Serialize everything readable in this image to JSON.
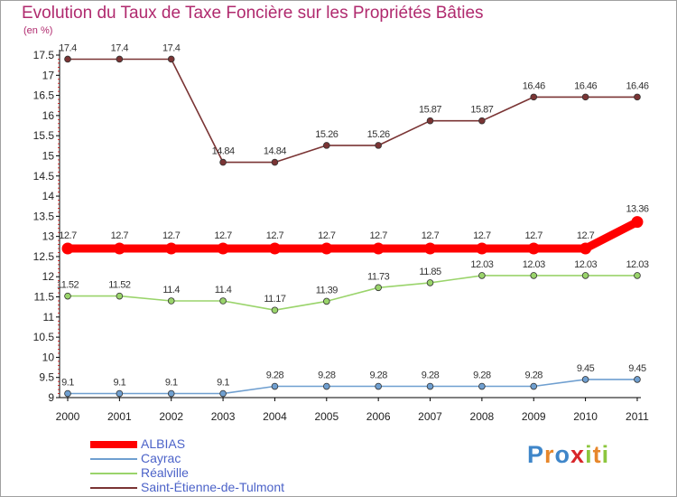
{
  "chart_data": {
    "type": "line",
    "title": "Evolution du Taux de Taxe Foncière sur les Propriétés Bâties",
    "ylabel": "(en %)",
    "xlabel": "",
    "x": [
      "2000",
      "2001",
      "2002",
      "2003",
      "2004",
      "2005",
      "2006",
      "2007",
      "2008",
      "2009",
      "2010",
      "2011"
    ],
    "ylim": [
      9,
      17.5
    ],
    "yticks": [
      "9",
      "9.5",
      "10",
      "10.5",
      "11",
      "11.5",
      "12",
      "12.5",
      "13",
      "13.5",
      "14",
      "14.5",
      "15",
      "15.5",
      "16",
      "16.5",
      "17",
      "17.5"
    ],
    "grid": false,
    "series": [
      {
        "name": "ALBIAS",
        "color": "#ff0000",
        "values": [
          12.7,
          12.7,
          12.7,
          12.7,
          12.7,
          12.7,
          12.7,
          12.7,
          12.7,
          12.7,
          12.7,
          13.36
        ],
        "labels": [
          "12.7",
          "12.7",
          "12.7",
          "12.7",
          "12.7",
          "12.7",
          "12.7",
          "12.7",
          "12.7",
          "12.7",
          "12.7",
          "13.36"
        ]
      },
      {
        "name": "Cayrac",
        "color": "#6f9fd0",
        "values": [
          9.1,
          9.1,
          9.1,
          9.1,
          9.28,
          9.28,
          9.28,
          9.28,
          9.28,
          9.28,
          9.45,
          9.45
        ],
        "labels": [
          "9.1",
          "9.1",
          "9.1",
          "9.1",
          "9.28",
          "9.28",
          "9.28",
          "9.28",
          "9.28",
          "9.28",
          "9.45",
          "9.45"
        ]
      },
      {
        "name": "Réalville",
        "color": "#9ad46b",
        "values": [
          11.52,
          11.52,
          11.4,
          11.4,
          11.17,
          11.39,
          11.73,
          11.85,
          12.03,
          12.03,
          12.03,
          12.03
        ],
        "labels": [
          "11.52",
          "11.52",
          "11.4",
          "11.4",
          "11.17",
          "11.39",
          "11.73",
          "11.85",
          "12.03",
          "12.03",
          "12.03",
          "12.03"
        ]
      },
      {
        "name": "Saint-Étienne-de-Tulmont",
        "color": "#7a3434",
        "values": [
          17.4,
          17.4,
          17.4,
          14.84,
          14.84,
          15.26,
          15.26,
          15.87,
          15.87,
          16.46,
          16.46,
          16.46
        ],
        "labels": [
          "17.4",
          "17.4",
          "17.4",
          "14.84",
          "14.84",
          "15.26",
          "15.26",
          "15.87",
          "15.87",
          "16.46",
          "16.46",
          "16.46"
        ]
      }
    ]
  },
  "watermark": {
    "letters": [
      "P",
      "r",
      "o",
      "x",
      "i",
      "t",
      "i"
    ],
    "colors": [
      "#3f86c9",
      "#e7872b",
      "#3f86c9",
      "#d8262a",
      "#8cc63e",
      "#e7872b",
      "#8cc63e"
    ]
  }
}
